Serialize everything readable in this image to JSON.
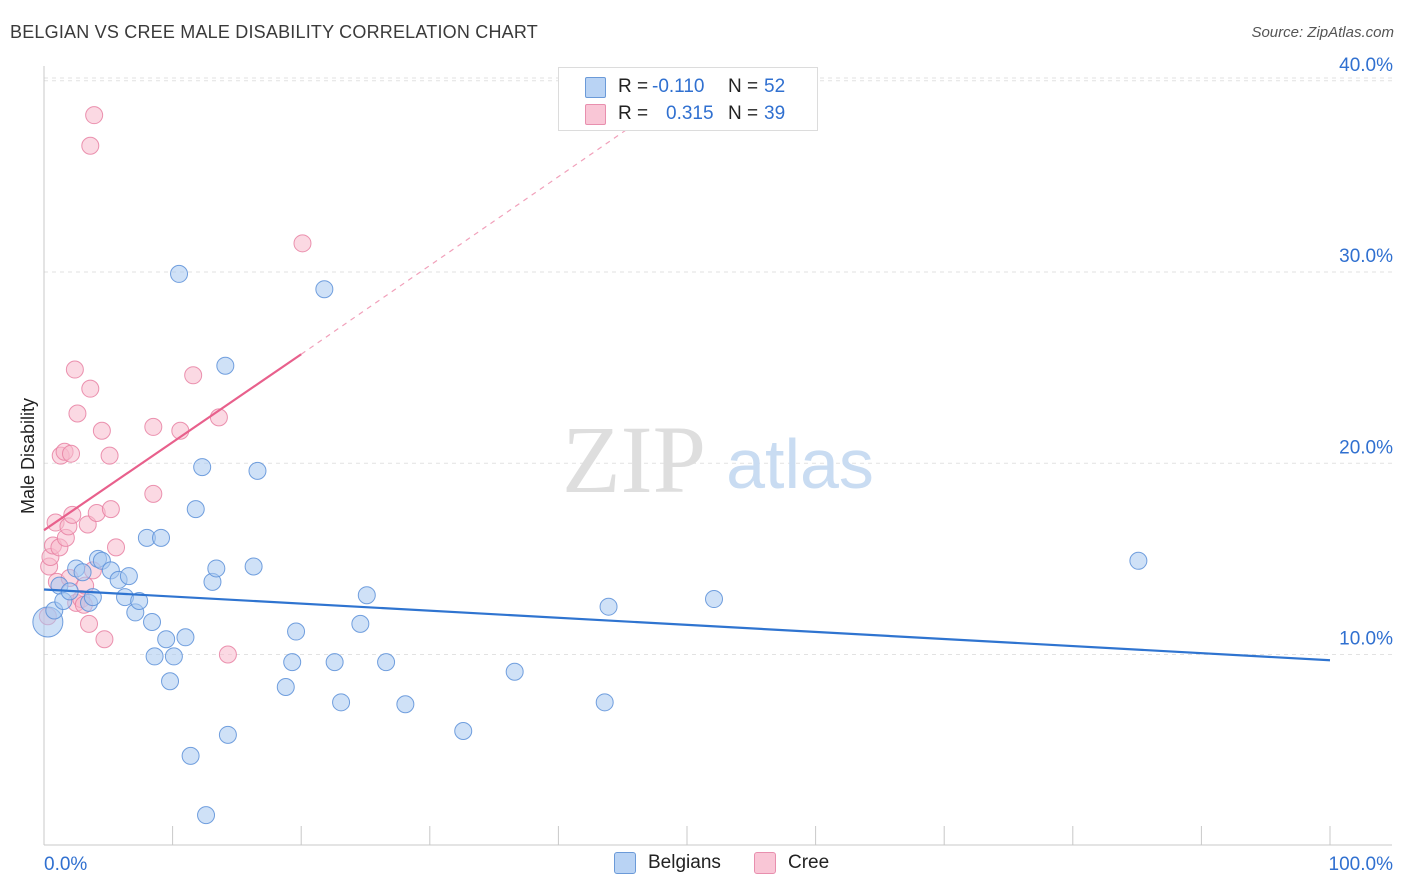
{
  "title": "BELGIAN VS CREE MALE DISABILITY CORRELATION CHART",
  "source": "Source: ZipAtlas.com",
  "watermark": {
    "zip": "ZIP",
    "atlas": "atlas"
  },
  "legend": {
    "belgians": {
      "r_label": "R =",
      "r_value": "-0.110",
      "n_label": "N =",
      "n_value": "52"
    },
    "cree": {
      "r_label": "R =",
      "r_value": "0.315",
      "n_label": "N =",
      "n_value": "39"
    }
  },
  "colors": {
    "belgians_fill": "#a8c8f0",
    "belgians_stroke": "#5a8fd8",
    "belgians_line": "#2f74d0",
    "cree_fill": "#f7b9cc",
    "cree_stroke": "#e880a2",
    "cree_line": "#e8608c",
    "tick_label": "#3070d0",
    "grid": "#e2e2e2"
  },
  "chart_data": {
    "type": "scatter",
    "title": "BELGIAN VS CREE MALE DISABILITY CORRELATION CHART",
    "xlabel": "",
    "ylabel": "Male Disability",
    "xlim": [
      0,
      100
    ],
    "ylim": [
      0,
      41
    ],
    "x_tick_labels": [
      "0.0%",
      "100.0%"
    ],
    "y_ticks": [
      10,
      20,
      30,
      40
    ],
    "y_tick_labels": [
      "10.0%",
      "20.0%",
      "30.0%",
      "40.0%"
    ],
    "grid": true,
    "legend_position": "top-center and bottom",
    "series": [
      {
        "name": "Belgians",
        "r": -0.11,
        "n": 52,
        "trend": {
          "x": [
            0,
            100
          ],
          "y": [
            13.4,
            9.7
          ]
        },
        "points": [
          [
            0.3,
            11.7
          ],
          [
            0.8,
            12.3
          ],
          [
            1.2,
            13.6
          ],
          [
            1.5,
            12.8
          ],
          [
            2.0,
            13.3
          ],
          [
            2.5,
            14.5
          ],
          [
            3.0,
            14.3
          ],
          [
            3.5,
            12.7
          ],
          [
            3.8,
            13.0
          ],
          [
            4.2,
            15.0
          ],
          [
            4.5,
            14.9
          ],
          [
            5.2,
            14.4
          ],
          [
            5.8,
            13.9
          ],
          [
            6.3,
            13.0
          ],
          [
            6.6,
            14.1
          ],
          [
            7.1,
            12.2
          ],
          [
            7.4,
            12.8
          ],
          [
            8.0,
            16.1
          ],
          [
            8.4,
            11.7
          ],
          [
            8.6,
            9.9
          ],
          [
            9.1,
            16.1
          ],
          [
            9.5,
            10.8
          ],
          [
            9.8,
            8.6
          ],
          [
            10.1,
            9.9
          ],
          [
            10.5,
            29.9
          ],
          [
            11.0,
            10.9
          ],
          [
            11.4,
            4.7
          ],
          [
            11.8,
            17.6
          ],
          [
            12.3,
            19.8
          ],
          [
            12.6,
            1.6
          ],
          [
            13.1,
            13.8
          ],
          [
            13.4,
            14.5
          ],
          [
            14.1,
            25.1
          ],
          [
            14.3,
            5.8
          ],
          [
            16.3,
            14.6
          ],
          [
            16.6,
            19.6
          ],
          [
            18.8,
            8.3
          ],
          [
            19.3,
            9.6
          ],
          [
            19.6,
            11.2
          ],
          [
            21.8,
            29.1
          ],
          [
            22.6,
            9.6
          ],
          [
            23.1,
            7.5
          ],
          [
            24.6,
            11.6
          ],
          [
            25.1,
            13.1
          ],
          [
            26.6,
            9.6
          ],
          [
            28.1,
            7.4
          ],
          [
            32.6,
            6.0
          ],
          [
            36.6,
            9.1
          ],
          [
            43.6,
            7.5
          ],
          [
            43.9,
            12.5
          ],
          [
            52.1,
            12.9
          ],
          [
            85.1,
            14.9
          ]
        ]
      },
      {
        "name": "Cree",
        "r": 0.315,
        "n": 39,
        "trend": {
          "x": [
            0,
            20
          ],
          "y": [
            16.5,
            25.7
          ]
        },
        "trend_extension": {
          "x": [
            20,
            46.5
          ],
          "y": [
            25.7,
            38.0
          ]
        },
        "points": [
          [
            0.3,
            12.0
          ],
          [
            0.4,
            14.6
          ],
          [
            0.5,
            15.1
          ],
          [
            0.7,
            15.7
          ],
          [
            0.9,
            16.9
          ],
          [
            1.0,
            13.8
          ],
          [
            1.2,
            15.6
          ],
          [
            1.3,
            20.4
          ],
          [
            1.6,
            20.6
          ],
          [
            1.7,
            16.1
          ],
          [
            1.9,
            16.7
          ],
          [
            2.1,
            20.5
          ],
          [
            2.2,
            17.3
          ],
          [
            2.5,
            12.7
          ],
          [
            2.4,
            24.9
          ],
          [
            2.6,
            22.6
          ],
          [
            2.9,
            12.9
          ],
          [
            3.1,
            12.6
          ],
          [
            3.2,
            13.6
          ],
          [
            3.4,
            16.8
          ],
          [
            3.6,
            23.9
          ],
          [
            3.5,
            11.6
          ],
          [
            3.6,
            36.6
          ],
          [
            3.8,
            14.4
          ],
          [
            3.9,
            38.2
          ],
          [
            4.1,
            17.4
          ],
          [
            4.5,
            21.7
          ],
          [
            4.7,
            10.8
          ],
          [
            5.1,
            20.4
          ],
          [
            5.2,
            17.6
          ],
          [
            5.6,
            15.6
          ],
          [
            8.5,
            21.9
          ],
          [
            8.5,
            18.4
          ],
          [
            10.6,
            21.7
          ],
          [
            11.6,
            24.6
          ],
          [
            13.6,
            22.4
          ],
          [
            14.3,
            10.0
          ],
          [
            20.1,
            31.5
          ],
          [
            2.0,
            14.0
          ]
        ]
      }
    ]
  }
}
